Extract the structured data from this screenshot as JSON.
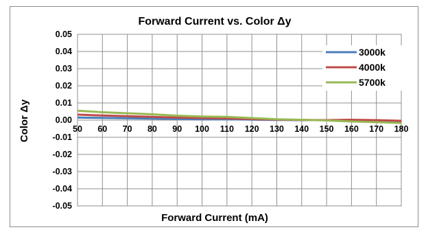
{
  "chart_data": {
    "type": "line",
    "title": "Forward Current vs. Color Δy",
    "xlabel": "Forward Current (mA)",
    "ylabel": "Color Δy",
    "x": [
      50,
      60,
      70,
      80,
      90,
      100,
      110,
      120,
      130,
      140,
      150,
      160,
      170,
      180
    ],
    "xlim": [
      50,
      180
    ],
    "ylim": [
      -0.05,
      0.05
    ],
    "y_ticks": [
      "0.05",
      "0.04",
      "0.03",
      "0.02",
      "0.01",
      "0.00",
      "-0.01",
      "-0.02",
      "-0.03",
      "-0.04",
      "-0.05"
    ],
    "x_ticks": [
      "50",
      "60",
      "70",
      "80",
      "90",
      "100",
      "110",
      "120",
      "130",
      "140",
      "150",
      "160",
      "170",
      "180"
    ],
    "grid": true,
    "legend_position": "top-right",
    "series": [
      {
        "name": "3000k",
        "color": "#4a7ebb",
        "values": [
          0.0015,
          0.0013,
          0.0011,
          0.0009,
          0.0007,
          0.0005,
          0.0005,
          0.0003,
          0.0001,
          0.0,
          0.0,
          -0.0004,
          -0.0008,
          -0.0012
        ]
      },
      {
        "name": "4000k",
        "color": "#be4b48",
        "values": [
          0.0032,
          0.0027,
          0.0023,
          0.0019,
          0.0015,
          0.0012,
          0.001,
          0.0006,
          0.0003,
          0.0001,
          0.0,
          0.0002,
          0.0,
          -0.0004
        ]
      },
      {
        "name": "5700k",
        "color": "#98b954",
        "values": [
          0.0055,
          0.0046,
          0.004,
          0.0034,
          0.0026,
          0.0021,
          0.0019,
          0.0012,
          0.0005,
          0.0002,
          -0.0002,
          -0.0008,
          -0.0012,
          -0.0017
        ]
      }
    ]
  }
}
